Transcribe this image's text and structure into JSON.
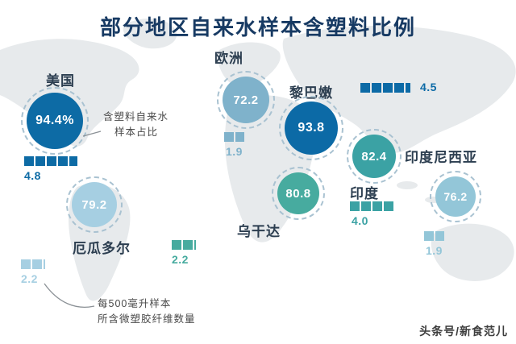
{
  "title": "部分地区自来水样本含塑料比例",
  "watermark": "头条号/新食范儿",
  "legend": {
    "circle_note_line1": "含塑料自来水",
    "circle_note_line2": "样本占比",
    "bar_note_line1": "每500毫升样本",
    "bar_note_line2": "所含微塑胶纤维数量"
  },
  "regions": [
    {
      "name": "美国",
      "value": "94.4%",
      "fibers": 4.8,
      "fibers_label": "4.8",
      "color": "#0d6ba5"
    },
    {
      "name": "欧洲",
      "value": "72.2",
      "fibers": 1.9,
      "fibers_label": "1.9",
      "color": "#7fb2cb"
    },
    {
      "name": "黎巴嫩",
      "value": "93.8",
      "fibers": 4.5,
      "fibers_label": "4.5",
      "color": "#0c6aa6"
    },
    {
      "name": "印度",
      "value": "82.4",
      "fibers": 4.0,
      "fibers_label": "4.0",
      "color": "#3ba2a4"
    },
    {
      "name": "印度尼西亚",
      "value": "76.2",
      "fibers": 1.9,
      "fibers_label": "1.9",
      "color": "#93c6d8"
    },
    {
      "name": "乌干达",
      "value": "80.8",
      "fibers": 2.2,
      "fibers_label": "2.2",
      "color": "#47ab9f"
    },
    {
      "name": "厄瓜多尔",
      "value": "79.2",
      "fibers": 2.2,
      "fibers_label": "2.2",
      "color": "#a6cfe2"
    }
  ],
  "chart_data": {
    "type": "bubble-map",
    "title": "部分地区自来水样本含塑料比例",
    "categories": [
      "美国",
      "欧洲",
      "黎巴嫩",
      "印度",
      "印度尼西亚",
      "乌干达",
      "厄瓜多尔"
    ],
    "series": [
      {
        "name": "含塑料自来水样本占比(%)",
        "values": [
          94.4,
          72.2,
          93.8,
          82.4,
          76.2,
          80.8,
          79.2
        ]
      },
      {
        "name": "每500毫升样本所含微塑胶纤维数量",
        "values": [
          4.8,
          1.9,
          4.5,
          4.0,
          1.9,
          2.2,
          2.2
        ]
      }
    ],
    "annotations": [
      "含塑料自来水样本占比",
      "每500毫升样本所含微塑胶纤维数量"
    ],
    "legend_position": "inline-callouts",
    "grid": false
  }
}
